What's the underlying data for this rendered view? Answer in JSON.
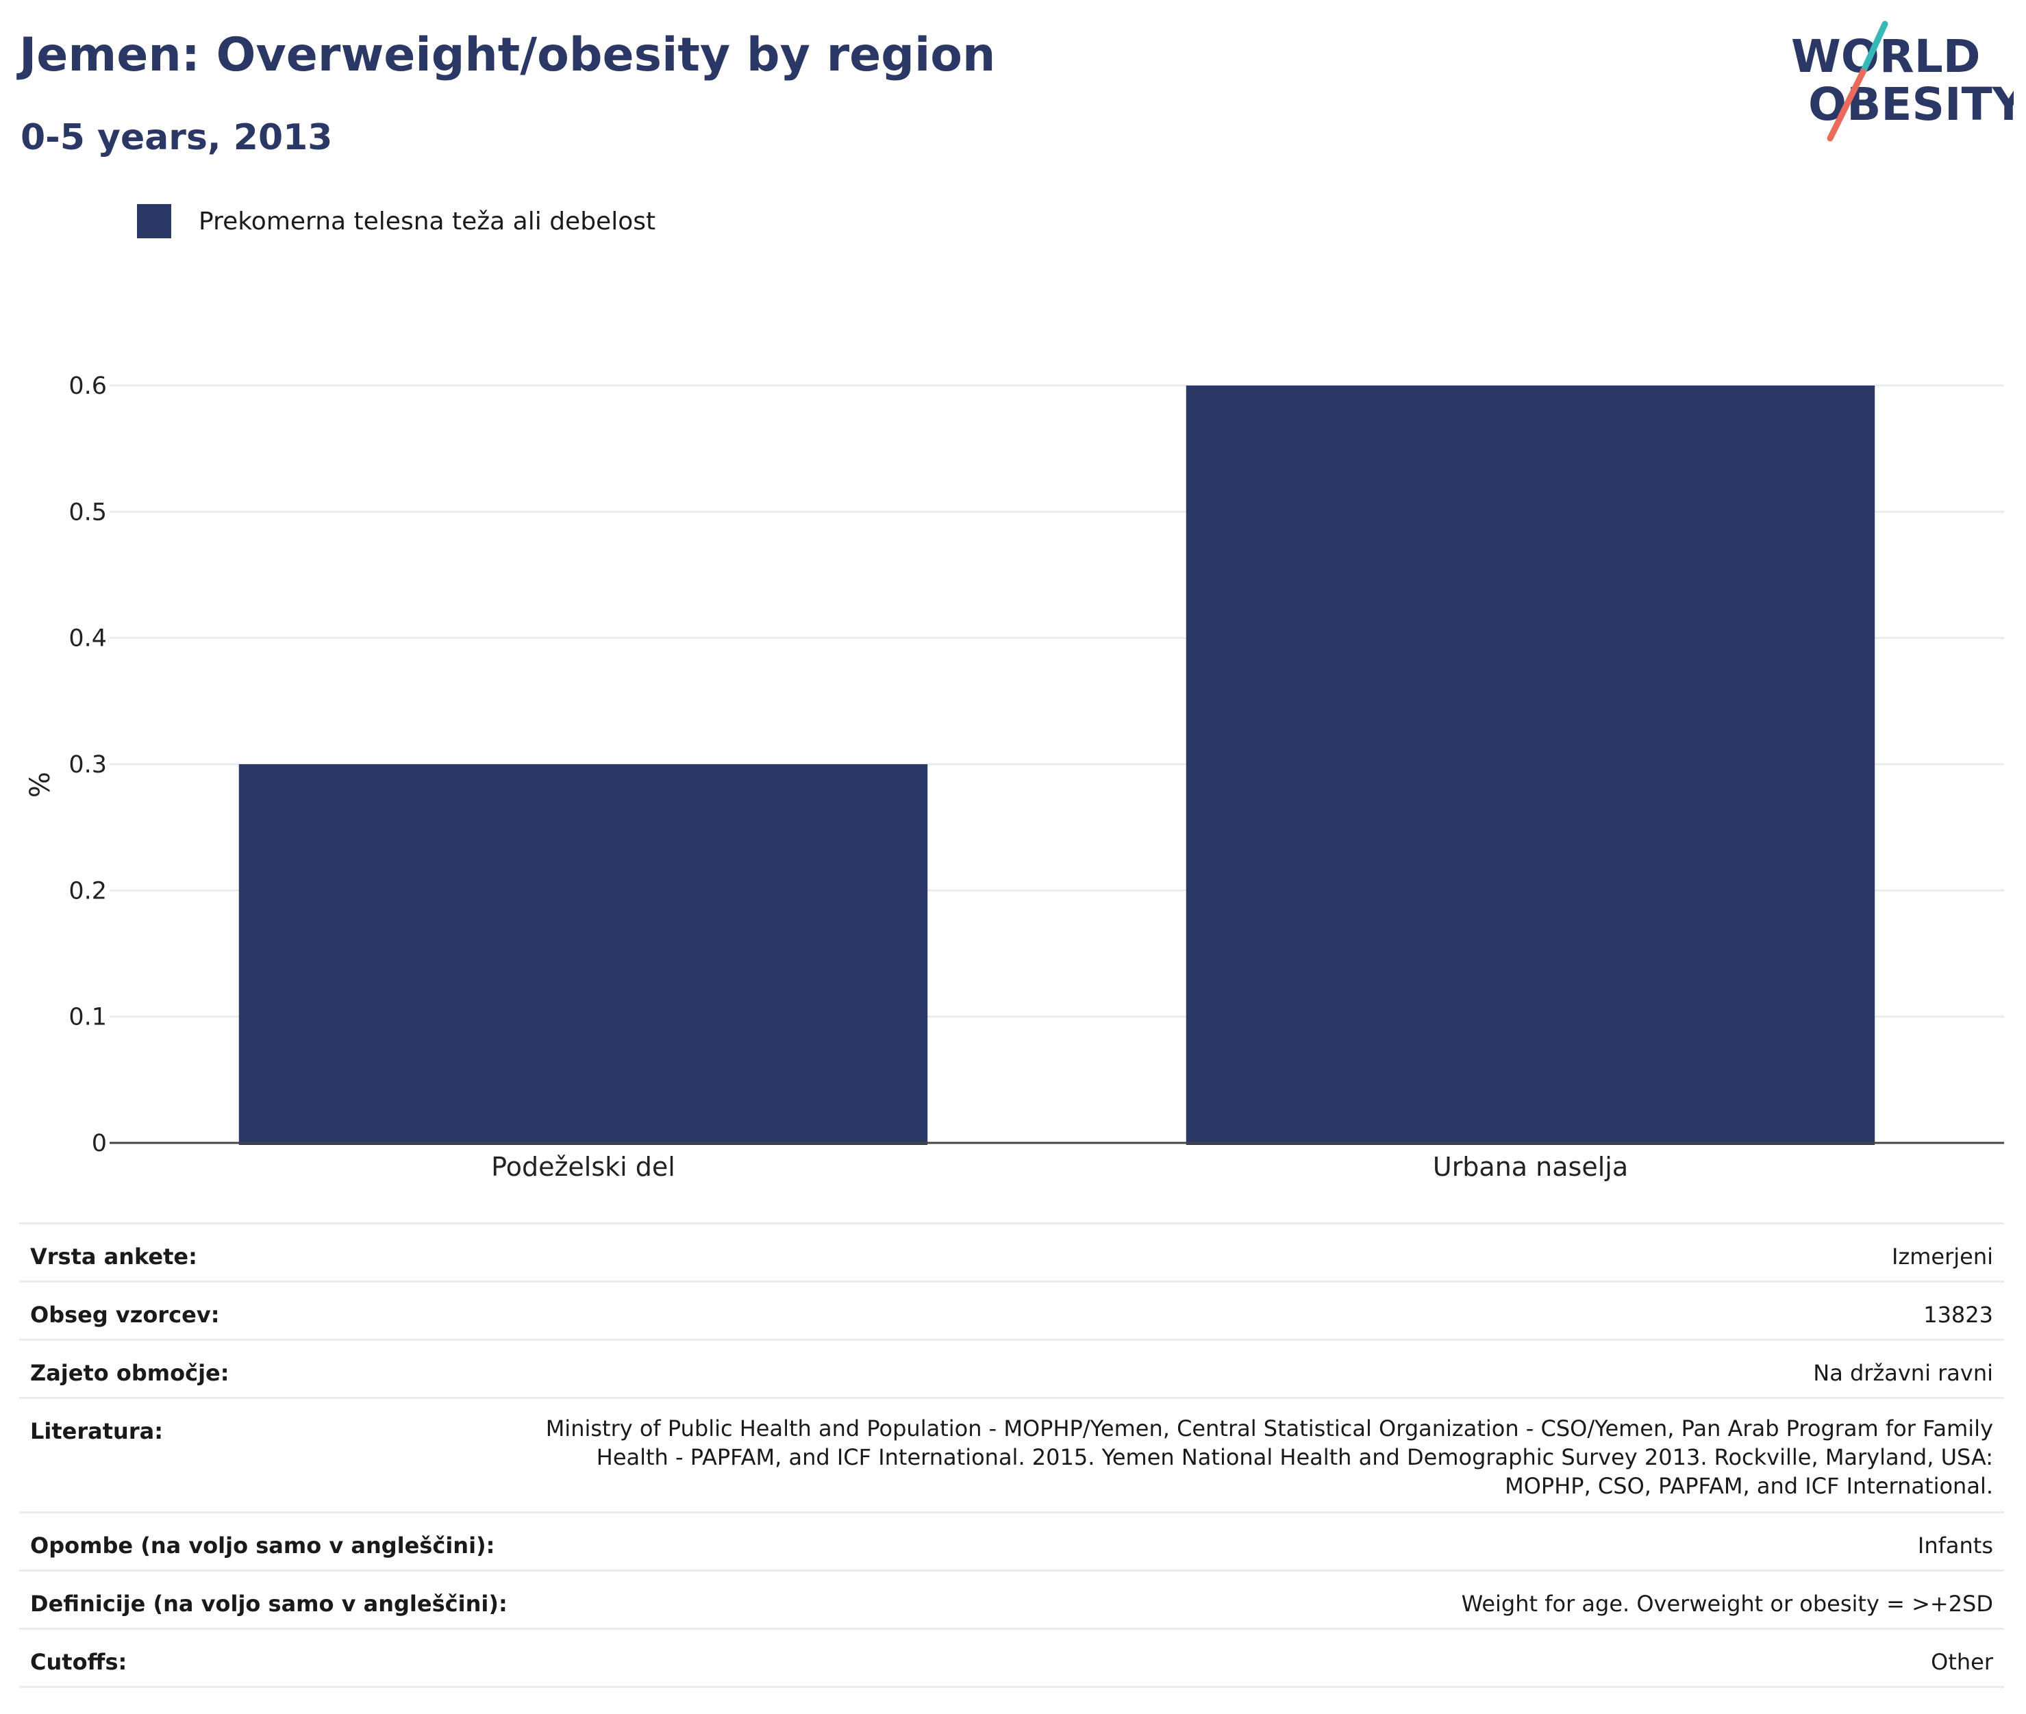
{
  "title": "Jemen: Overweight/obesity by region",
  "subtitle": "0-5 years, 2013",
  "logo": {
    "line1": "WORLD",
    "line2": "OBESITY"
  },
  "colors": {
    "bar": "#2b3764",
    "title": "#2b3764",
    "grid": "#e9ecef",
    "axis": "#444444",
    "logo_teal": "#36b7b8",
    "logo_coral": "#ea6b5b"
  },
  "chart_data": {
    "type": "bar",
    "categories": [
      "Podeželski del",
      "Urbana naselja"
    ],
    "series": [
      {
        "name": "Prekomerna telesna teža ali debelost",
        "values": [
          0.3,
          0.6
        ]
      }
    ],
    "ylabel": "%",
    "xlabel": "",
    "ylim": [
      0,
      0.6
    ],
    "yticks": [
      "0",
      "0.1",
      "0.2",
      "0.3",
      "0.4",
      "0.5",
      "0.6"
    ],
    "grid": true,
    "legend": "top-left"
  },
  "meta": [
    {
      "label": "Vrsta ankete:",
      "value": "Izmerjeni"
    },
    {
      "label": "Obseg vzorcev:",
      "value": "13823"
    },
    {
      "label": "Zajeto območje:",
      "value": "Na državni ravni"
    },
    {
      "label": "Literatura:",
      "value": "Ministry of Public Health and Population - MOPHP/Yemen, Central Statistical Organization - CSO/Yemen, Pan Arab Program for Family Health - PAPFAM, and ICF International. 2015. Yemen National Health and Demographic Survey 2013. Rockville, Maryland, USA: MOPHP, CSO, PAPFAM, and ICF International."
    },
    {
      "label": "Opombe (na voljo samo v angleščini):",
      "value": "Infants"
    },
    {
      "label": "Definicije (na voljo samo v angleščini):",
      "value": "Weight for age. Overweight or obesity = >+2SD"
    },
    {
      "label": "Cutoffs:",
      "value": "Other"
    }
  ]
}
